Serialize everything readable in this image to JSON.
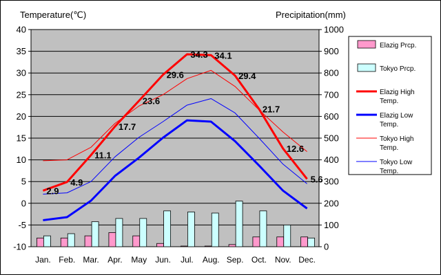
{
  "chart_data": {
    "type": "bar+line",
    "y_left_label": "Temperature(℃)",
    "y_right_label": "Precipitation(mm)",
    "y_left_range": [
      -10,
      40
    ],
    "y_left_ticks": [
      "40",
      "35",
      "30",
      "25",
      "20",
      "15",
      "10",
      "5",
      "0",
      "-5",
      "-10"
    ],
    "y_right_range": [
      0,
      1000
    ],
    "y_right_ticks": [
      "1000",
      "900",
      "800",
      "700",
      "600",
      "500",
      "400",
      "300",
      "200",
      "100",
      "0"
    ],
    "categories": [
      "Jan.",
      "Feb.",
      "Mar.",
      "Apr.",
      "May",
      "Jun.",
      "Jul.",
      "Aug.",
      "Sep.",
      "Oct.",
      "Nov.",
      "Dec."
    ],
    "bars": [
      {
        "name": "Elazig Prcp.",
        "color": "#ff99cc",
        "values": [
          40,
          40,
          50,
          65,
          50,
          15,
          3,
          3,
          10,
          45,
          45,
          45
        ]
      },
      {
        "name": "Tokyo Prcp.",
        "color": "#ccffff",
        "values": [
          50,
          60,
          115,
          130,
          130,
          165,
          160,
          155,
          210,
          165,
          100,
          40
        ]
      }
    ],
    "lines": [
      {
        "name": "Elazig High Temp.",
        "color": "#ff0000",
        "width": 3,
        "values": [
          2.9,
          4.9,
          11.1,
          17.7,
          23.6,
          29.6,
          34.3,
          34.1,
          29.4,
          21.7,
          12.6,
          5.6
        ]
      },
      {
        "name": "Elazig Low Temp.",
        "color": "#0000ff",
        "width": 3,
        "values": [
          -3.9,
          -3.2,
          0.6,
          6.3,
          10.5,
          15.1,
          19.1,
          18.8,
          14.3,
          8.7,
          2.9,
          -1.2
        ]
      },
      {
        "name": "Tokyo High Temp.",
        "color": "#ff0000",
        "width": 1,
        "values": [
          9.8,
          10.0,
          12.9,
          18.4,
          22.4,
          25.0,
          28.7,
          30.6,
          26.9,
          21.5,
          16.4,
          11.9
        ]
      },
      {
        "name": "Tokyo Low Temp.",
        "color": "#0000ff",
        "width": 1,
        "values": [
          2.1,
          2.4,
          5.0,
          10.7,
          15.2,
          18.8,
          22.6,
          24.1,
          20.8,
          15.0,
          9.0,
          4.5
        ]
      }
    ],
    "data_labels": {
      "series": "Elazig High Temp.",
      "texts": [
        "2.9",
        "4.9",
        "11.1",
        "17.7",
        "23.6",
        "29.6",
        "34.3",
        "34.1",
        "29.4",
        "21.7",
        "12.6",
        "5.6"
      ]
    },
    "legend_position": "right",
    "plot_background": "#c0c0c0",
    "grid": true
  }
}
